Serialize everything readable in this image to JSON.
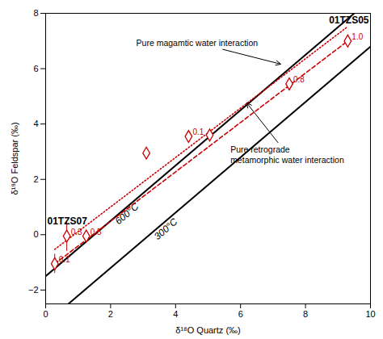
{
  "chart_data": {
    "type": "scatter",
    "x_label": "δ¹⁸O Quartz (‰)",
    "y_label": "δ¹⁸O Feldspar (‰)",
    "xlim": [
      0,
      10
    ],
    "ylim": [
      -2.5,
      8
    ],
    "xticks": [
      0,
      2,
      4,
      6,
      8,
      10
    ],
    "yticks": [
      -2,
      0,
      2,
      4,
      6,
      8
    ],
    "grid": false,
    "legend": false,
    "series": [
      {
        "name": "600°C",
        "type": "line",
        "color": "black",
        "line_style": "solid",
        "x": [
          0,
          9.5
        ],
        "values": [
          -1.5,
          8
        ],
        "name_at": [
          2.5,
          0.75
        ]
      },
      {
        "name": "300°C",
        "type": "line",
        "color": "black",
        "line_style": "solid",
        "x": [
          0.7,
          10
        ],
        "values": [
          -2.5,
          6.8
        ],
        "name_at": [
          3.7,
          0.2
        ]
      },
      {
        "type": "line",
        "color": "#cc0000",
        "line_style": "dashed",
        "x": [
          0.28,
          9.3
        ],
        "values": [
          -1.05,
          7.0
        ]
      },
      {
        "type": "line",
        "color": "#cc0000",
        "line_style": "dotted",
        "x": [
          0.28,
          9.3
        ],
        "values": [
          -0.53,
          7.52
        ]
      },
      {
        "name": "01TZS07",
        "type": "scatter",
        "color": "#cc0000",
        "marker": "diamond",
        "x": [
          0.28,
          0.65,
          1.25
        ],
        "values": [
          -1.05,
          -0.05,
          -0.05
        ],
        "xerr": [
          0.08,
          0.08,
          0.08
        ],
        "yerr": [
          0.35,
          0.55,
          0.12
        ],
        "point_labels": [
          "0.1",
          "0.3",
          "0.5"
        ],
        "name_at": [
          0.05,
          0.38
        ]
      },
      {
        "name": "01TZS05",
        "type": "scatter",
        "color": "#cc0000",
        "marker": "diamond",
        "x": [
          3.1,
          4.4,
          5.05,
          7.5,
          9.3
        ],
        "values": [
          2.95,
          3.55,
          3.6,
          5.45,
          7.0
        ],
        "xerr": [
          0.06,
          0.06,
          0.06,
          0.06,
          0.06
        ],
        "yerr": [
          0.12,
          0.12,
          0.12,
          0.12,
          0.12
        ],
        "point_labels": [
          null,
          "0.1",
          null,
          "0.8",
          "1.0"
        ],
        "name_at": [
          9.95,
          7.65
        ]
      }
    ],
    "annotations": [
      {
        "text": "Pure magamtic water interaction",
        "x": 2.8,
        "y": 6.9,
        "arrow_to": [
          7.25,
          6.15
        ]
      },
      {
        "text": "Pure retrograde\nmetamorphic water interaction",
        "x": 5.7,
        "y": 3.2,
        "arrow_to": [
          6.2,
          4.75
        ]
      }
    ]
  }
}
